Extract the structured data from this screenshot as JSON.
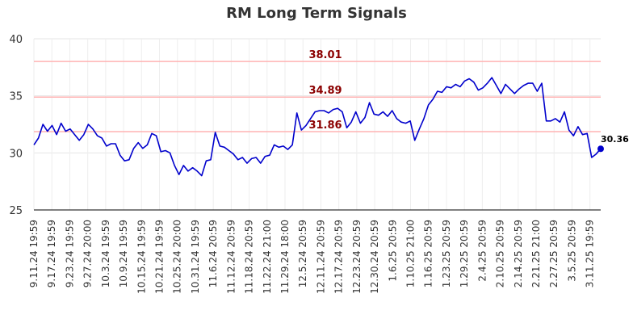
{
  "chart_data": {
    "type": "line",
    "title": "RM Long Term Signals",
    "xlabel": "",
    "ylabel": "",
    "ylim": [
      25,
      40
    ],
    "y_ticks": [
      25,
      30,
      35,
      40
    ],
    "grid": true,
    "x_tick_labels": [
      "9.11.24 19:59",
      "9.17.24 19:59",
      "9.23.24 19:59",
      "9.27.24 20:00",
      "10.3.24 19:59",
      "10.9.24 19:59",
      "10.15.24 19:59",
      "10.21.24 19:59",
      "10.25.24 20:00",
      "10.31.24 19:59",
      "11.6.24 20:59",
      "11.12.24 20:59",
      "11.18.24 20:59",
      "11.22.24 21:00",
      "11.29.24 18:00",
      "12.5.24 20:59",
      "12.11.24 20:59",
      "12.17.24 20:59",
      "12.23.24 20:59",
      "12.30.24 20:59",
      "1.6.25 20:59",
      "1.10.25 21:00",
      "1.16.25 20:59",
      "1.23.25 20:59",
      "1.29.25 20:59",
      "2.4.25 20:59",
      "2.10.25 20:59",
      "2.14.25 20:59",
      "2.21.25 21:00",
      "2.27.25 20:59",
      "3.5.25 20:59",
      "3.11.25 19:59"
    ],
    "reference_lines": [
      {
        "value": 38.01,
        "label": "38.01",
        "color": "#ffb3b3"
      },
      {
        "value": 34.89,
        "label": "34.89",
        "color": "#ffb3b3"
      },
      {
        "value": 31.86,
        "label": "31.86",
        "color": "#ffb3b3"
      }
    ],
    "series": [
      {
        "color": "#0000cc",
        "values": [
          30.7,
          31.3,
          32.5,
          31.9,
          32.4,
          31.6,
          32.6,
          31.9,
          32.1,
          31.6,
          31.1,
          31.6,
          32.5,
          32.1,
          31.5,
          31.3,
          30.6,
          30.8,
          30.8,
          29.8,
          29.3,
          29.4,
          30.4,
          30.9,
          30.4,
          30.7,
          31.7,
          31.5,
          30.1,
          30.2,
          30.0,
          28.9,
          28.1,
          28.9,
          28.4,
          28.7,
          28.4,
          28.0,
          29.3,
          29.4,
          31.8,
          30.6,
          30.5,
          30.2,
          29.9,
          29.4,
          29.6,
          29.1,
          29.5,
          29.6,
          29.1,
          29.7,
          29.8,
          30.7,
          30.5,
          30.6,
          30.3,
          30.7,
          33.5,
          32.0,
          32.4,
          33.0,
          33.6,
          33.7,
          33.7,
          33.5,
          33.8,
          33.9,
          33.6,
          32.2,
          32.7,
          33.6,
          32.6,
          33.1,
          34.4,
          33.4,
          33.3,
          33.6,
          33.2,
          33.7,
          33.0,
          32.7,
          32.6,
          32.8,
          31.1,
          32.1,
          33.0,
          34.2,
          34.7,
          35.4,
          35.3,
          35.8,
          35.7,
          36.0,
          35.8,
          36.3,
          36.5,
          36.2,
          35.5,
          35.7,
          36.1,
          36.6,
          35.9,
          35.2,
          36.0,
          35.6,
          35.2,
          35.6,
          35.9,
          36.1,
          36.1,
          35.4,
          36.1,
          32.8,
          32.8,
          33.0,
          32.7,
          33.6,
          32.0,
          31.5,
          32.3,
          31.6,
          31.7,
          29.6,
          29.9,
          30.36
        ]
      }
    ],
    "last_point": {
      "value": 30.36,
      "label": "30.36"
    }
  }
}
